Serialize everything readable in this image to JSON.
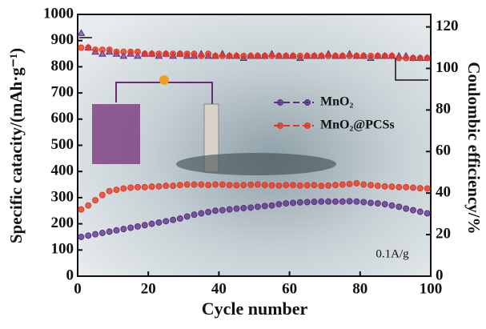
{
  "chart_data": {
    "type": "scatter",
    "y_label": "Specific catacity/(mAh·g⁻¹)",
    "y2_label": "Coulombic efficiency/%",
    "x_label": "Cycle number",
    "annotation": "0.1A/g",
    "xlim": [
      0,
      100
    ],
    "xticks": [
      0,
      20,
      40,
      60,
      80,
      100
    ],
    "ylim": [
      0,
      1000
    ],
    "yticks": [
      0,
      100,
      200,
      300,
      400,
      500,
      600,
      700,
      800,
      900,
      1000
    ],
    "y2lim": [
      0,
      126
    ],
    "y2ticks": [
      0,
      20,
      40,
      60,
      80,
      100,
      120
    ],
    "x": [
      1,
      3,
      5,
      7,
      9,
      11,
      13,
      15,
      17,
      19,
      21,
      23,
      25,
      27,
      29,
      31,
      33,
      35,
      37,
      39,
      41,
      43,
      45,
      47,
      49,
      51,
      53,
      55,
      57,
      59,
      61,
      63,
      65,
      67,
      69,
      71,
      73,
      75,
      77,
      79,
      81,
      83,
      85,
      87,
      89,
      91,
      93,
      95,
      97,
      99
    ],
    "series": [
      {
        "name": "MnO₂",
        "color": "#5b2c86",
        "marker": "circle",
        "values": [
          150,
          155,
          160,
          165,
          170,
          175,
          180,
          185,
          190,
          195,
          200,
          205,
          210,
          215,
          220,
          228,
          235,
          240,
          245,
          250,
          252,
          255,
          258,
          260,
          262,
          265,
          268,
          270,
          275,
          278,
          280,
          282,
          283,
          284,
          285,
          285,
          285,
          285,
          286,
          285,
          283,
          280,
          278,
          275,
          270,
          265,
          258,
          252,
          246,
          240
        ]
      },
      {
        "name": "MnO₂@PCSs",
        "color": "#e5341f",
        "marker": "circle",
        "values": [
          255,
          270,
          290,
          310,
          325,
          330,
          335,
          338,
          340,
          340,
          342,
          343,
          345,
          345,
          348,
          350,
          350,
          350,
          348,
          350,
          350,
          348,
          347,
          348,
          349,
          350,
          348,
          347,
          346,
          348,
          348,
          346,
          347,
          348,
          345,
          346,
          348,
          350,
          352,
          355,
          350,
          348,
          345,
          343,
          342,
          340,
          340,
          338,
          336,
          335
        ]
      },
      {
        "color": "#5b2c86",
        "marker": "triangle",
        "axis": "y2",
        "values": [
          117,
          110,
          108,
          107,
          108,
          107,
          106,
          107,
          106,
          107,
          107,
          106,
          107,
          106,
          107,
          106,
          106,
          107,
          106,
          106,
          107,
          106,
          106,
          105,
          106,
          106,
          106,
          107,
          106,
          106,
          106,
          105,
          106,
          106,
          106,
          107,
          106,
          106,
          107,
          106,
          106,
          105,
          106,
          106,
          106,
          106,
          106,
          105,
          105,
          105
        ]
      },
      {
        "color": "#e5341f",
        "marker": "circle",
        "axis": "y2",
        "values": [
          110,
          110,
          109,
          109,
          109,
          108,
          108,
          108,
          108,
          107,
          107,
          107,
          107,
          107,
          107,
          107,
          107,
          106,
          107,
          106,
          106,
          106,
          106,
          106,
          106,
          106,
          106,
          106,
          106,
          106,
          106,
          106,
          106,
          106,
          106,
          106,
          106,
          106,
          106,
          106,
          106,
          106,
          106,
          106,
          106,
          105,
          105,
          105,
          105,
          105
        ]
      }
    ]
  }
}
